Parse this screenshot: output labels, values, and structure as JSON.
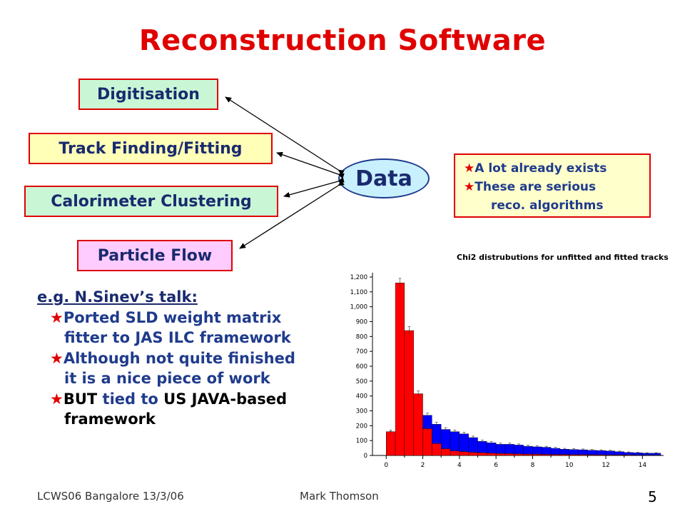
{
  "slide": {
    "title": "Reconstruction Software",
    "boxes": {
      "digitisation": "Digitisation",
      "track": "Track Finding/Fitting",
      "calorimeter": "Calorimeter Clustering",
      "particle": "Particle Flow"
    },
    "data_label": "Data",
    "note": {
      "line1": "A lot already exists",
      "line2": "These are serious",
      "line3": "reco. algorithms"
    },
    "talk": {
      "header": "e.g. N.Sinev’s talk:",
      "b1_line1": "Ported SLD weight matrix",
      "b1_line2": "fitter to JAS ILC framework",
      "b2_line1": "Although not quite finished",
      "b2_line2": "it is a nice piece of work",
      "b3_but": "BUT",
      "b3_mid": " tied to ",
      "b3_us": "US JAVA-based",
      "b3_line2": "framework"
    },
    "footer": {
      "left": "LCWS06 Bangalore 13/3/06",
      "center": "Mark Thomson",
      "page": "5"
    },
    "colors": {
      "accent_red": "#e00000",
      "navy": "#1f3b8c"
    }
  },
  "chart_data": {
    "type": "bar",
    "title": "Chi2 distrubutions for unfitted and fitted tracks",
    "xlim": [
      -0.75,
      15
    ],
    "ylim": [
      0,
      1200
    ],
    "x_ticks": [
      0,
      2,
      4,
      6,
      8,
      10,
      12,
      14
    ],
    "y_ticks": [
      0,
      100,
      200,
      300,
      400,
      500,
      600,
      700,
      800,
      900,
      1000,
      1100,
      1200
    ],
    "y_tick_labels": [
      "0",
      "100",
      "200",
      "300",
      "400",
      "500",
      "600",
      "700",
      "800",
      "900",
      "1,000",
      "1,100",
      "1,200"
    ],
    "bin_width": 0.5,
    "bin_starts": [
      0,
      0.5,
      1,
      1.5,
      2,
      2.5,
      3,
      3.5,
      4,
      4.5,
      5,
      5.5,
      6,
      6.5,
      7,
      7.5,
      8,
      8.5,
      9,
      9.5,
      10,
      10.5,
      11,
      11.5,
      12,
      12.5,
      13,
      13.5,
      14,
      14.5
    ],
    "series": [
      {
        "color": "#0000ff",
        "values": [
          150,
          140,
          120,
          230,
          270,
          210,
          175,
          160,
          145,
          120,
          95,
          85,
          75,
          75,
          70,
          62,
          58,
          55,
          48,
          42,
          40,
          38,
          35,
          33,
          30,
          25,
          20,
          18,
          15,
          15
        ]
      },
      {
        "color": "#ff0000",
        "values": [
          160,
          1160,
          840,
          415,
          180,
          80,
          45,
          30,
          25,
          20,
          18,
          15,
          13,
          12,
          10,
          9,
          8,
          7,
          6,
          6,
          5,
          5,
          4,
          4,
          3,
          3,
          3,
          2,
          2,
          2
        ]
      }
    ]
  }
}
